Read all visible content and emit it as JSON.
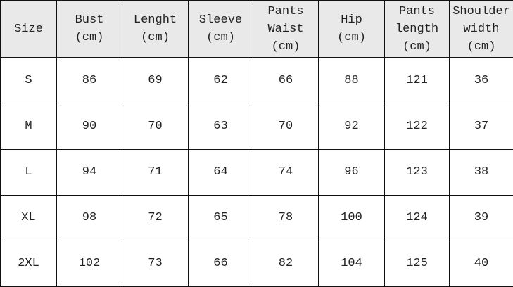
{
  "table": {
    "header": [
      [
        "Size"
      ],
      [
        "Bust",
        "(cm)"
      ],
      [
        "Lenght",
        "(cm)"
      ],
      [
        "Sleeve",
        "(cm)"
      ],
      [
        "Pants",
        "Waist",
        "(cm)"
      ],
      [
        "Hip",
        "(cm)"
      ],
      [
        "Pants",
        "length",
        "(cm)"
      ],
      [
        "Shoulder",
        "width",
        "(cm)"
      ]
    ],
    "rows": [
      [
        "S",
        "86",
        "69",
        "62",
        "66",
        "88",
        "121",
        "36"
      ],
      [
        "M",
        "90",
        "70",
        "63",
        "70",
        "92",
        "122",
        "37"
      ],
      [
        "L",
        "94",
        "71",
        "64",
        "74",
        "96",
        "123",
        "38"
      ],
      [
        "XL",
        "98",
        "72",
        "65",
        "78",
        "100",
        "124",
        "39"
      ],
      [
        "2XL",
        "102",
        "73",
        "66",
        "82",
        "104",
        "125",
        "40"
      ]
    ]
  }
}
